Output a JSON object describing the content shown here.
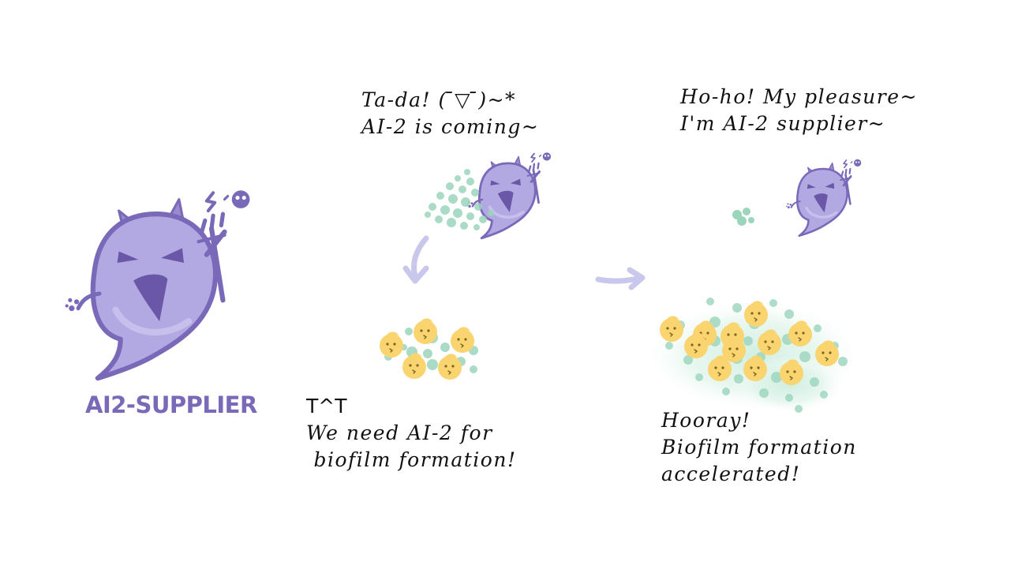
{
  "colors": {
    "ghost_fill": "#b3a9e2",
    "ghost_outline": "#7a68b8",
    "ghost_dark": "#6b57a8",
    "ai2_dot": "#9ad5bc",
    "cell_yellow": "#f9d46f",
    "arrow": "#c9c8ec",
    "ink": "#111111"
  },
  "logo": {
    "label": "AI2-SUPPLIER"
  },
  "captions": {
    "tada": [
      "Ta-da! ( ̄▽ ̄)~*",
      "AI-2 is coming~"
    ],
    "hoho": [
      "Ho-ho!  My pleasure~",
      "I'm AI-2 supplier~"
    ],
    "sad": [
      "T^T",
      "We need AI-2 for",
      " biofilm formation!"
    ],
    "hooray": [
      "Hooray!",
      "Biofilm formation",
      "accelerated!"
    ]
  }
}
